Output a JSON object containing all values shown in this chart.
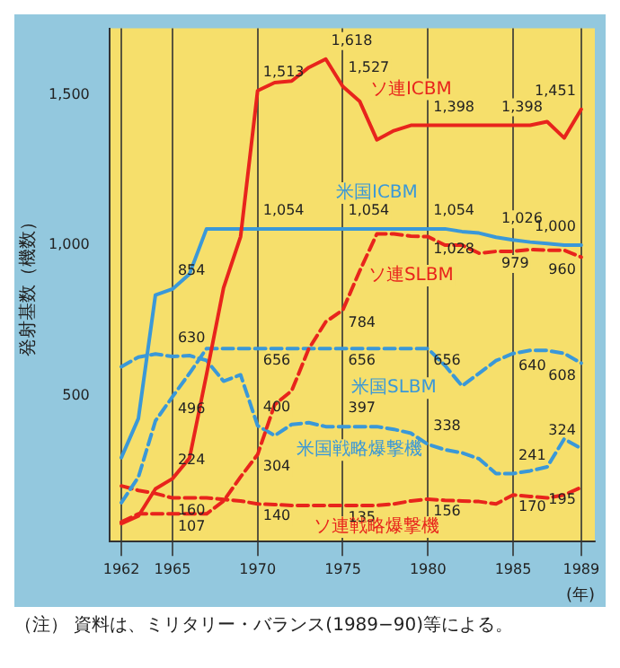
{
  "chart_data": {
    "type": "line",
    "ylabel": "発射基数（機数）",
    "xlabel": "(年)",
    "x": [
      1962,
      1963,
      1964,
      1965,
      1966,
      1967,
      1968,
      1969,
      1970,
      1971,
      1972,
      1973,
      1974,
      1975,
      1976,
      1977,
      1978,
      1979,
      1980,
      1981,
      1982,
      1983,
      1984,
      1985,
      1986,
      1987,
      1988,
      1989
    ],
    "xlim": [
      1961.3,
      1989.8
    ],
    "xticks": [
      1962,
      1965,
      1970,
      1975,
      1980,
      1985,
      1989
    ],
    "ylim": [
      15,
      1720
    ],
    "yticks": [
      {
        "value": 500,
        "label": "500"
      },
      {
        "value": 1000,
        "label": "1,000"
      },
      {
        "value": 1500,
        "label": "1,500"
      }
    ],
    "grid": "x",
    "legend": false,
    "series": [
      {
        "name": "ソ連ICBM",
        "color": "#e8241c",
        "line_style": "solid",
        "values": [
          75,
          100,
          190,
          224,
          292,
          570,
          858,
          1028,
          1513,
          1540,
          1545,
          1590,
          1618,
          1527,
          1477,
          1350,
          1380,
          1398,
          1398,
          1398,
          1398,
          1398,
          1398,
          1398,
          1398,
          1410,
          1356,
          1451
        ],
        "value_labels": [
          null,
          null,
          null,
          "224",
          null,
          null,
          null,
          null,
          "1,513",
          null,
          null,
          null,
          "1,618",
          "1,527",
          null,
          null,
          null,
          null,
          "1,398",
          null,
          null,
          null,
          "1,398",
          null,
          null,
          null,
          null,
          "1,451"
        ]
      },
      {
        "name": "米国ICBM",
        "color": "#3a98d8",
        "line_style": "solid",
        "values": [
          294,
          424,
          834,
          854,
          904,
          1054,
          1054,
          1054,
          1054,
          1054,
          1054,
          1054,
          1054,
          1054,
          1054,
          1054,
          1054,
          1054,
          1054,
          1054,
          1045,
          1040,
          1026,
          1017,
          1010,
          1005,
          1000,
          1000
        ],
        "value_labels": [
          null,
          null,
          null,
          "854",
          null,
          null,
          null,
          null,
          "1,054",
          null,
          null,
          null,
          null,
          "1,054",
          null,
          null,
          null,
          null,
          "1,054",
          null,
          null,
          null,
          "1,026",
          null,
          null,
          null,
          null,
          "1,000"
        ]
      },
      {
        "name": "ソ連SLBM",
        "color": "#e8241c",
        "line_style": "dashed",
        "values": [
          80,
          107,
          107,
          107,
          107,
          107,
          150,
          230,
          304,
          470,
          516,
          655,
          745,
          784,
          915,
          1037,
          1037,
          1030,
          1028,
          1000,
          1000,
          973,
          979,
          979,
          985,
          983,
          983,
          960
        ],
        "value_labels": [
          null,
          null,
          null,
          "107",
          null,
          null,
          null,
          null,
          "304",
          null,
          null,
          null,
          null,
          "784",
          null,
          null,
          null,
          null,
          "1,028",
          null,
          null,
          null,
          "979",
          null,
          null,
          null,
          null,
          "960"
        ]
      },
      {
        "name": "米国SLBM",
        "color": "#3a98d8",
        "line_style": "dashed",
        "values": [
          144,
          229,
          416,
          496,
          574,
          656,
          656,
          656,
          656,
          656,
          656,
          656,
          656,
          656,
          656,
          656,
          656,
          656,
          656,
          600,
          532,
          574,
          616,
          640,
          650,
          650,
          640,
          608
        ],
        "value_labels": [
          null,
          null,
          null,
          "496",
          null,
          null,
          null,
          null,
          "656",
          null,
          null,
          null,
          null,
          "656",
          null,
          null,
          null,
          null,
          "656",
          null,
          null,
          null,
          null,
          "640",
          null,
          null,
          null,
          "608"
        ]
      },
      {
        "name": "米国戦略爆撃機",
        "color": "#3a98d8",
        "line_style": "dashed",
        "values": [
          596,
          628,
          638,
          630,
          633,
          617,
          548,
          569,
          400,
          367,
          404,
          410,
          397,
          397,
          397,
          397,
          388,
          375,
          338,
          320,
          310,
          290,
          241,
          241,
          250,
          263,
          356,
          324
        ],
        "value_labels": [
          null,
          null,
          null,
          "630",
          null,
          null,
          null,
          null,
          "400",
          null,
          null,
          null,
          null,
          "397",
          null,
          null,
          null,
          null,
          "338",
          null,
          null,
          null,
          null,
          "241",
          null,
          null,
          null,
          "324"
        ]
      },
      {
        "name": "ソ連戦略爆撃機",
        "color": "#e8241c",
        "line_style": "dashed",
        "values": [
          200,
          185,
          175,
          160,
          160,
          160,
          155,
          150,
          140,
          138,
          135,
          135,
          135,
          135,
          135,
          135,
          140,
          150,
          156,
          152,
          150,
          148,
          140,
          170,
          165,
          160,
          170,
          195
        ],
        "value_labels": [
          null,
          null,
          null,
          "160",
          null,
          null,
          null,
          null,
          "140",
          null,
          null,
          null,
          null,
          "135",
          null,
          null,
          null,
          null,
          "156",
          null,
          null,
          null,
          null,
          "170",
          null,
          null,
          null,
          "195"
        ]
      }
    ],
    "annotations": [
      "（注） 資料は、ミリタリー・バランス(1989−90)等による。"
    ]
  }
}
